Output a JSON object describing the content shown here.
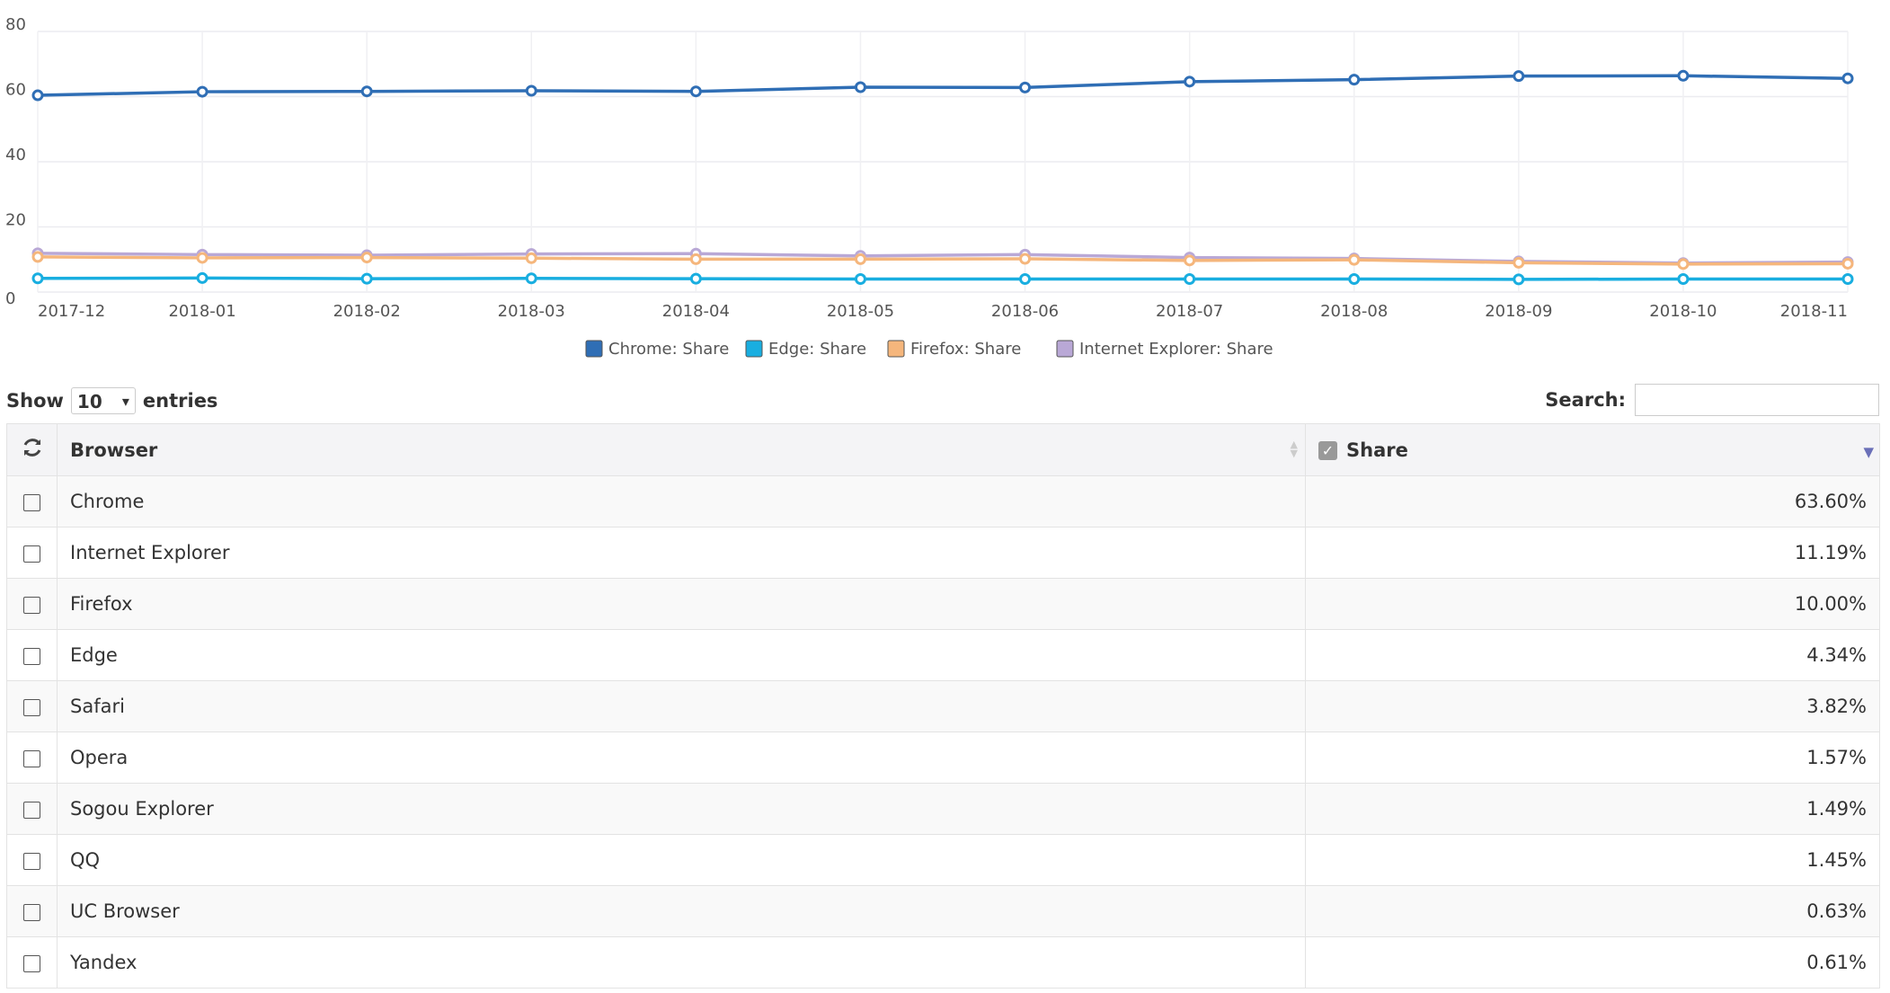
{
  "chart_data": {
    "type": "line",
    "x": [
      "2017-12",
      "2018-01",
      "2018-02",
      "2018-03",
      "2018-04",
      "2018-05",
      "2018-06",
      "2018-07",
      "2018-08",
      "2018-09",
      "2018-10",
      "2018-11"
    ],
    "series": [
      {
        "name": "Chrome: Share",
        "color": "#2f6eb5",
        "values": [
          60.4,
          61.5,
          61.6,
          61.8,
          61.6,
          62.9,
          62.8,
          64.6,
          65.2,
          66.3,
          66.4,
          65.6
        ]
      },
      {
        "name": "Edge: Share",
        "color": "#19aee0",
        "values": [
          4.2,
          4.3,
          4.1,
          4.2,
          4.1,
          4.0,
          4.0,
          4.0,
          4.0,
          3.9,
          4.0,
          4.0
        ]
      },
      {
        "name": "Firefox: Share",
        "color": "#f5b67c",
        "values": [
          10.8,
          10.5,
          10.6,
          10.4,
          10.1,
          10.1,
          10.2,
          9.7,
          9.9,
          9.0,
          8.6,
          8.7
        ]
      },
      {
        "name": "Internet Explorer: Share",
        "color": "#b9a8d6",
        "values": [
          11.9,
          11.5,
          11.3,
          11.7,
          11.8,
          11.1,
          11.5,
          10.6,
          10.3,
          9.4,
          8.9,
          9.2
        ]
      }
    ],
    "ylim": [
      0,
      80
    ],
    "yticks": [
      0,
      20,
      40,
      60,
      80
    ],
    "grid": true,
    "legend": "bottom"
  },
  "table_controls": {
    "show_label": "Show",
    "page_size": "10",
    "entries_label": "entries",
    "search_label": "Search:"
  },
  "table": {
    "columns": [
      "Browser",
      "Share"
    ],
    "rows": [
      [
        "Chrome",
        "63.60%"
      ],
      [
        "Internet Explorer",
        "11.19%"
      ],
      [
        "Firefox",
        "10.00%"
      ],
      [
        "Edge",
        "4.34%"
      ],
      [
        "Safari",
        "3.82%"
      ],
      [
        "Opera",
        "1.57%"
      ],
      [
        "Sogou Explorer",
        "1.49%"
      ],
      [
        "QQ",
        "1.45%"
      ],
      [
        "UC Browser",
        "0.63%"
      ],
      [
        "Yandex",
        "0.61%"
      ]
    ]
  }
}
